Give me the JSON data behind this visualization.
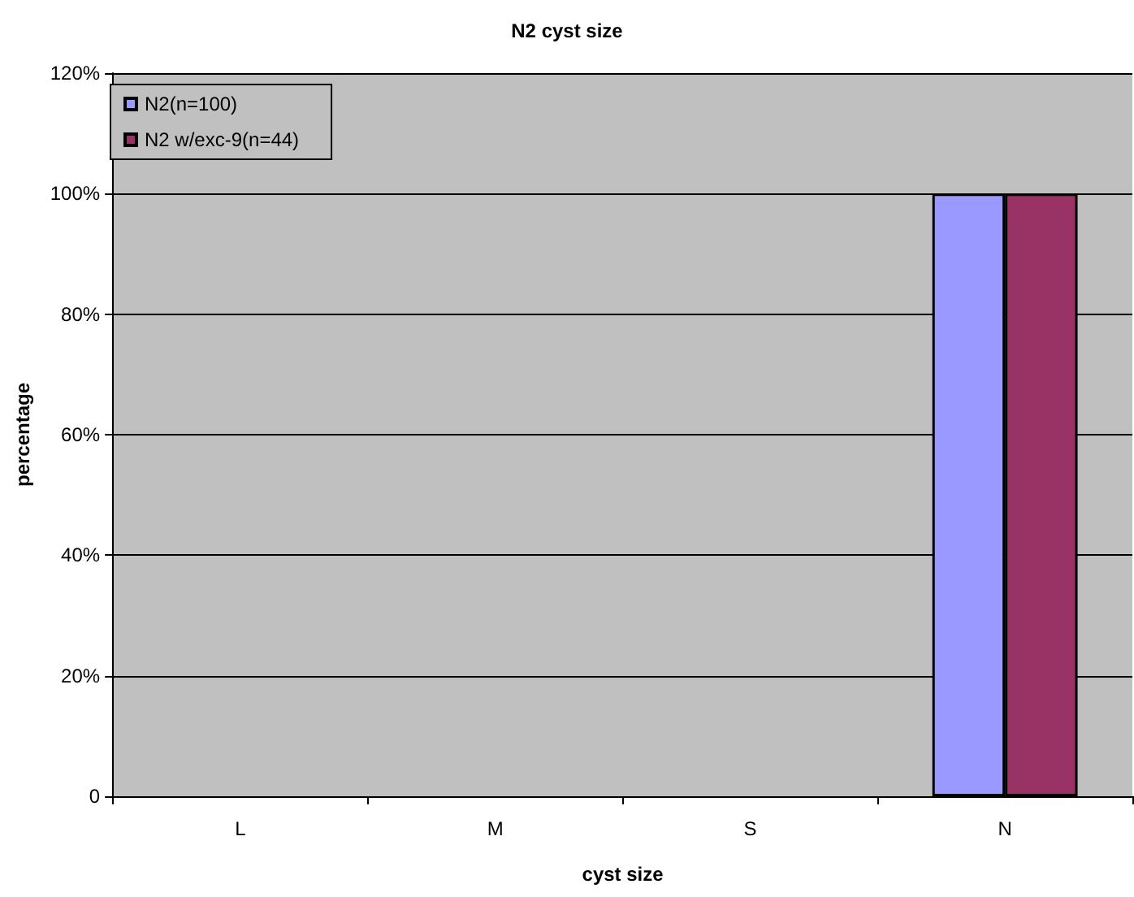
{
  "chart_data": {
    "type": "bar",
    "title": "N2 cyst size",
    "xlabel": "cyst size",
    "ylabel": "percentage",
    "categories": [
      "L",
      "M",
      "S",
      "N"
    ],
    "series": [
      {
        "name": "N2(n=100)",
        "color": "#9999ff",
        "values": [
          0,
          0,
          0,
          100
        ]
      },
      {
        "name": "N2 w/exc-9(n=44)",
        "color": "#993366",
        "values": [
          0,
          0,
          0,
          100
        ]
      }
    ],
    "ylim": [
      0,
      120
    ],
    "yticks": [
      0,
      {
        "value": 20,
        "label": "20%"
      },
      {
        "value": 40,
        "label": "40%"
      },
      {
        "value": 60,
        "label": "60%"
      },
      {
        "value": 80,
        "label": "80%"
      },
      {
        "value": 100,
        "label": "100%"
      },
      {
        "value": 120,
        "label": "120%"
      }
    ],
    "grid": "y",
    "legend": "top left"
  }
}
